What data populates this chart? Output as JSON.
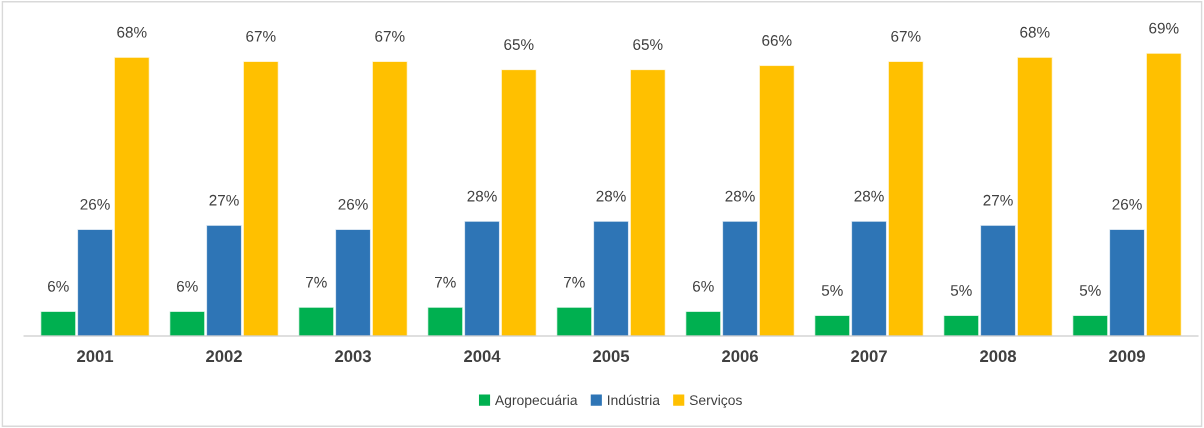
{
  "chart_data": {
    "type": "bar",
    "categories": [
      "2001",
      "2002",
      "2003",
      "2004",
      "2005",
      "2006",
      "2007",
      "2008",
      "2009"
    ],
    "series": [
      {
        "name": "Agropecuária",
        "color": "#00b050",
        "values": [
          6,
          6,
          7,
          7,
          7,
          6,
          5,
          5,
          5
        ],
        "value_labels": [
          "6%",
          "6%",
          "7%",
          "7%",
          "7%",
          "6%",
          "5%",
          "5%",
          "5%"
        ]
      },
      {
        "name": "Indústria",
        "color": "#2e75b6",
        "values": [
          26,
          27,
          26,
          28,
          28,
          28,
          28,
          27,
          26
        ],
        "value_labels": [
          "26%",
          "27%",
          "26%",
          "28%",
          "28%",
          "28%",
          "28%",
          "27%",
          "26%"
        ]
      },
      {
        "name": "Serviços",
        "color": "#ffc000",
        "values": [
          68,
          67,
          67,
          65,
          65,
          66,
          67,
          68,
          69
        ],
        "value_labels": [
          "68%",
          "67%",
          "67%",
          "65%",
          "65%",
          "66%",
          "67%",
          "68%",
          "69%"
        ]
      }
    ],
    "legend": "bottom"
  }
}
